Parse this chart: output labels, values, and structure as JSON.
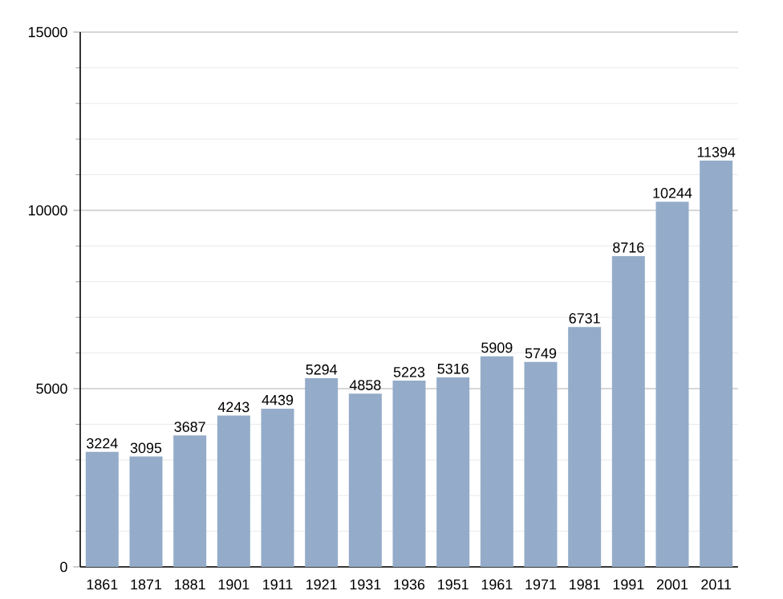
{
  "chart_data": {
    "type": "bar",
    "categories": [
      "1861",
      "1871",
      "1881",
      "1901",
      "1911",
      "1921",
      "1931",
      "1936",
      "1951",
      "1961",
      "1971",
      "1981",
      "1991",
      "2001",
      "2011"
    ],
    "values": [
      3224,
      3095,
      3687,
      4243,
      4439,
      5294,
      4858,
      5223,
      5316,
      5909,
      5749,
      6731,
      8716,
      10244,
      11394
    ],
    "color": "#94acc9",
    "ylim": [
      0,
      15000
    ],
    "yticks": [
      0,
      5000,
      10000,
      15000
    ],
    "grid": "y",
    "data_labels": true
  }
}
